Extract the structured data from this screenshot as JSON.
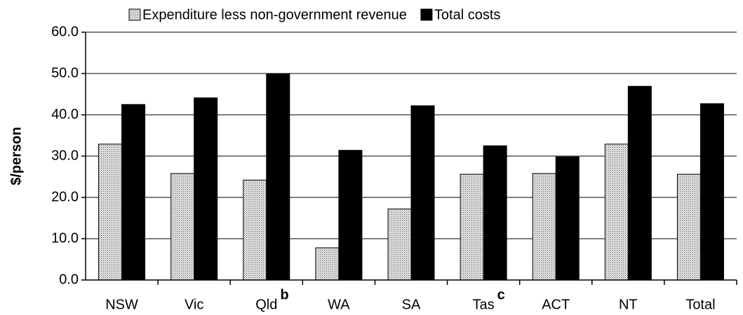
{
  "chart_data": {
    "type": "bar",
    "y_label": "$/person",
    "categories": [
      "NSW",
      "Vic",
      "Qld",
      "WA",
      "SA",
      "Tas",
      "ACT",
      "NT",
      "Total"
    ],
    "category_notes": [
      null,
      null,
      "b",
      null,
      null,
      "c",
      null,
      null,
      null
    ],
    "series": [
      {
        "name": "Expenditure less non-government revenue",
        "color": "#c8c8c8",
        "pattern": "dots",
        "values": [
          32.9,
          25.8,
          24.2,
          7.8,
          17.2,
          25.6,
          25.8,
          32.9,
          25.6
        ]
      },
      {
        "name": "Total costs",
        "color": "#000000",
        "pattern": "solid",
        "values": [
          42.5,
          44.1,
          50.0,
          31.4,
          42.2,
          32.5,
          29.8,
          46.9,
          42.7
        ]
      }
    ],
    "ylim": [
      0,
      60
    ],
    "yticks": [
      {
        "value": 0,
        "label": "0.0"
      },
      {
        "value": 10,
        "label": "10.0"
      },
      {
        "value": 20,
        "label": "20.0"
      },
      {
        "value": 30,
        "label": "30.0"
      },
      {
        "value": 40,
        "label": "40.0"
      },
      {
        "value": 50,
        "label": "50.0"
      },
      {
        "value": 60,
        "label": "60.0"
      }
    ],
    "grid": true,
    "legend": "top"
  }
}
